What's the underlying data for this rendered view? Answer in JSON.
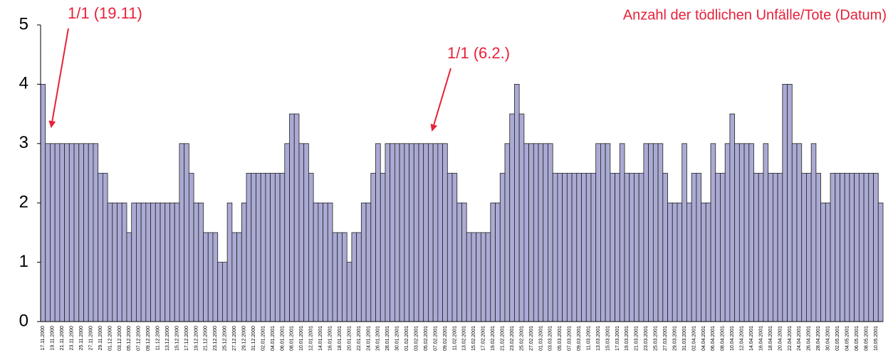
{
  "chart_data": {
    "type": "bar",
    "title": "Anzahl der tödlichen Unfälle/Tote (Datum)",
    "annotations": [
      "1/1 (19.11)",
      "1/1 (6.2.)"
    ],
    "color": "#aaaad4",
    "ylim": [
      0,
      5
    ],
    "yticks": [
      0,
      1,
      2,
      3,
      4,
      5
    ],
    "grid": false,
    "categories": [
      "17.11.2000",
      null,
      "19.11.2000",
      null,
      "21.11.2000",
      null,
      "23.11.2000",
      null,
      "25.11.2000",
      null,
      "27.11.2000",
      null,
      "29.11.2000",
      null,
      "01.12.2000",
      null,
      "03.12.2000",
      null,
      "05.12.2000",
      null,
      "07.12.2000",
      null,
      "09.12.2000",
      null,
      "11.12.2000",
      null,
      "13.12.2000",
      null,
      "15.12.2000",
      null,
      "17.12.2000",
      null,
      "19.12.2000",
      null,
      "21.12.2000",
      null,
      "23.12.2000",
      null,
      "25.12.2000",
      null,
      "27.12.2000",
      null,
      "29.12.2000",
      null,
      "31.12.2000",
      null,
      "02.01.2001",
      null,
      "04.01.2001",
      null,
      "06.01.2001",
      null,
      "08.01.2001",
      null,
      "10.01.2001",
      null,
      "12.01.2001",
      null,
      "14.01.2001",
      null,
      "16.01.2001",
      null,
      "18.01.2001",
      null,
      "20.01.2001",
      null,
      "22.01.2001",
      null,
      "24.01.2001",
      null,
      "26.01.2001",
      null,
      "28.01.2001",
      null,
      "30.01.2001",
      null,
      "01.02.2001",
      null,
      "03.02.2001",
      null,
      "05.02.2001",
      null,
      "07.02.2001",
      null,
      "09.02.2001",
      null,
      "11.02.2001",
      null,
      "13.02.2001",
      null,
      "15.02.2001",
      null,
      "17.02.2001",
      null,
      "19.02.2001",
      null,
      "21.02.2001",
      null,
      "23.02.2001",
      null,
      "25.02.2001",
      null,
      "27.02.2001",
      null,
      "01.03.2001",
      null,
      "03.03.2001",
      null,
      "05.03.2001",
      null,
      "07.03.2001",
      null,
      "09.03.2001",
      null,
      "11.03.2001",
      null,
      "13.03.2001",
      null,
      "15.03.2001",
      null,
      "17.03.2001",
      null,
      "19.03.2001",
      null,
      "21.03.2001",
      null,
      "23.03.2001",
      null,
      "25.03.2001",
      null,
      "27.03.2001",
      null,
      "29.03.2001",
      null,
      "31.03.2001",
      null,
      "02.04.2001",
      null,
      "04.04.2001",
      null,
      "06.04.2001",
      null,
      "08.04.2001",
      null,
      "10.04.2001",
      null,
      "12.04.2001",
      null,
      "14.04.2001",
      null,
      "16.04.2001",
      null,
      "18.04.2001",
      null,
      "20.04.2001",
      null,
      "22.04.2001",
      null,
      "24.04.2001",
      null,
      "26.04.2001",
      null,
      "28.04.2001",
      null,
      "30.04.2001",
      null,
      "02.05.2001",
      null,
      "04.05.2001",
      null,
      "06.05.2001",
      null,
      "08.05.2001",
      null,
      "10.05.2001",
      null
    ],
    "values": [
      4,
      3,
      3,
      3,
      3,
      3,
      3,
      3,
      3,
      3,
      3,
      3,
      2.5,
      2.5,
      2,
      2,
      2,
      2,
      1.5,
      2,
      2,
      2,
      2,
      2,
      2,
      2,
      2,
      2,
      2,
      3,
      3,
      2.5,
      2,
      2,
      1.5,
      1.5,
      1.5,
      1,
      1,
      2,
      1.5,
      1.5,
      2,
      2.5,
      2.5,
      2.5,
      2.5,
      2.5,
      2.5,
      2.5,
      2.5,
      3,
      3.5,
      3.5,
      3,
      3,
      2.5,
      2,
      2,
      2,
      2,
      1.5,
      1.5,
      1.5,
      1,
      1.5,
      1.5,
      2,
      2,
      2.5,
      3,
      2.5,
      3,
      3,
      3,
      3,
      3,
      3,
      3,
      3,
      3,
      3,
      3,
      3,
      3,
      2.5,
      2.5,
      2,
      2,
      1.5,
      1.5,
      1.5,
      1.5,
      1.5,
      2,
      2,
      2.5,
      3,
      3.5,
      4,
      3.5,
      3,
      3,
      3,
      3,
      3,
      3,
      2.5,
      2.5,
      2.5,
      2.5,
      2.5,
      2.5,
      2.5,
      2.5,
      2.5,
      3,
      3,
      3,
      2.5,
      2.5,
      3,
      2.5,
      2.5,
      2.5,
      2.5,
      3,
      3,
      3,
      3,
      2.5,
      2,
      2,
      2,
      3,
      2,
      2.5,
      2.5,
      2,
      2,
      3,
      2.5,
      2.5,
      3,
      3.5,
      3,
      3,
      3,
      3,
      2.5,
      2.5,
      3,
      2.5,
      2.5,
      2.5,
      4,
      4,
      3,
      3,
      2.5,
      2.5,
      3,
      2.5,
      2,
      2,
      2.5,
      2.5,
      2.5,
      2.5,
      2.5,
      2.5,
      2.5,
      2.5,
      2.5,
      2.5,
      2
    ]
  }
}
